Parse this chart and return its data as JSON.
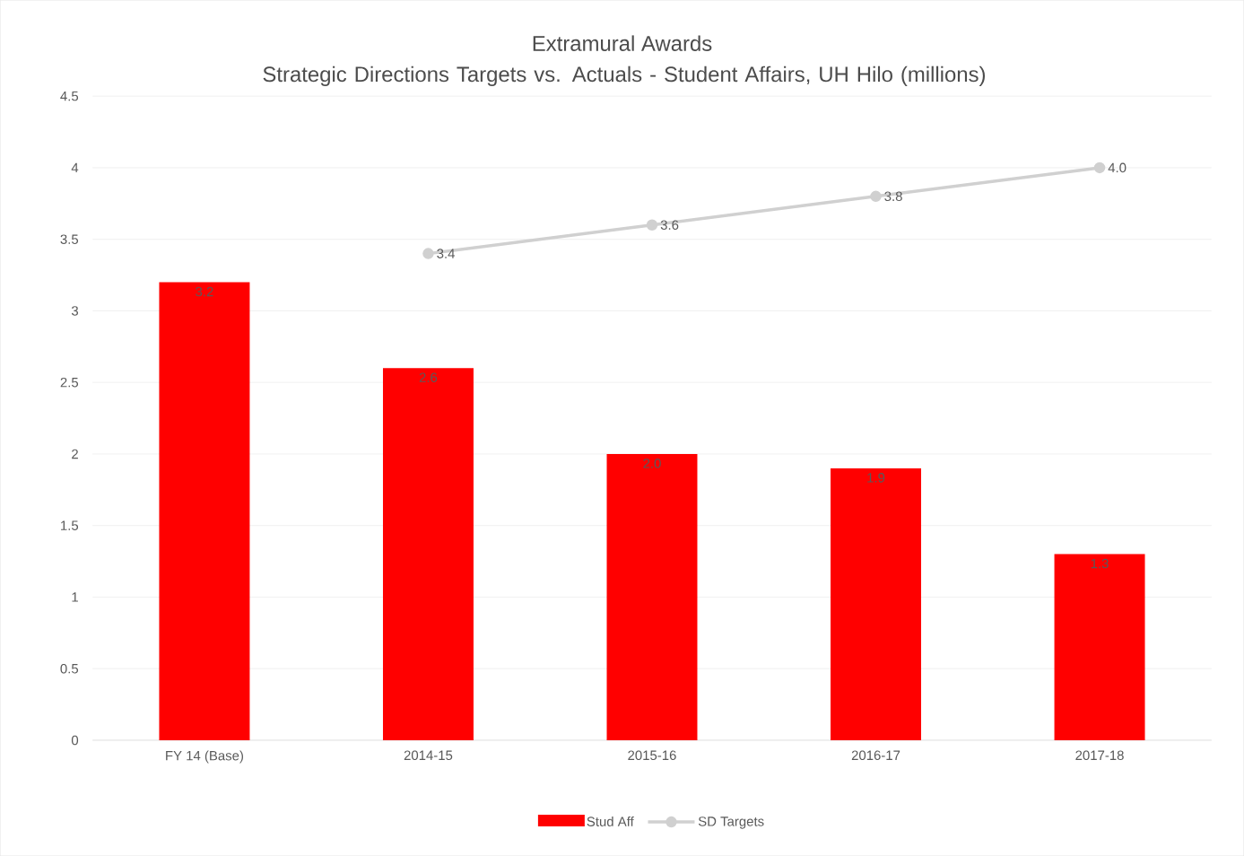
{
  "chart_data": {
    "type": "bar",
    "title": "Extramural Awards",
    "subtitle": "Strategic Directions Targets vs. Actuals - Student Affairs, UH Hilo (millions)",
    "categories": [
      "FY 14 (Base)",
      "2014-15",
      "2015-16",
      "2016-17",
      "2017-18"
    ],
    "series": [
      {
        "name": "Stud Aff",
        "color": "#ff0000",
        "values": [
          3.2,
          2.6,
          2.0,
          1.9,
          1.3
        ],
        "value_labels": [
          "3.2",
          "2.6",
          "2.0",
          "1.9",
          "1.3"
        ]
      },
      {
        "name": "SD Targets",
        "type": "line",
        "color": "#d0d0d0",
        "marker": "circle",
        "values": [
          null,
          3.4,
          3.6,
          3.8,
          4.0
        ],
        "value_labels": [
          null,
          "3.4",
          "3.6",
          "3.8",
          "4.0"
        ]
      }
    ],
    "ylim": [
      0,
      4.5
    ],
    "yticks": [
      0,
      0.5,
      1,
      1.5,
      2,
      2.5,
      3,
      3.5,
      4,
      4.5
    ],
    "grid": "y",
    "legend": "bottom"
  }
}
